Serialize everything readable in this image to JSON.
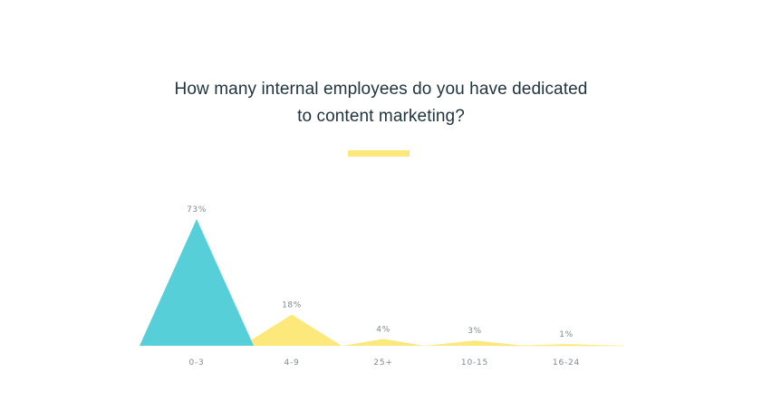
{
  "title_lines": [
    "How many internal employees do you have dedicated",
    "to content marketing?"
  ],
  "colors": {
    "highlight": "#56cfd8",
    "others": "#fde87c",
    "title": "#213540",
    "labels": "#808a90",
    "accent_bar": "#fde87c"
  },
  "chart_data": {
    "type": "area",
    "categories": [
      "0-3",
      "4-9",
      "25+",
      "10-15",
      "16-24"
    ],
    "values": [
      73,
      18,
      4,
      3,
      1
    ],
    "value_labels": [
      "73%",
      "18%",
      "4%",
      "3%",
      "1%"
    ],
    "unit": "%",
    "highlighted_category": "0-3",
    "ylim": [
      0,
      73
    ],
    "grid": false,
    "legend": "none"
  }
}
